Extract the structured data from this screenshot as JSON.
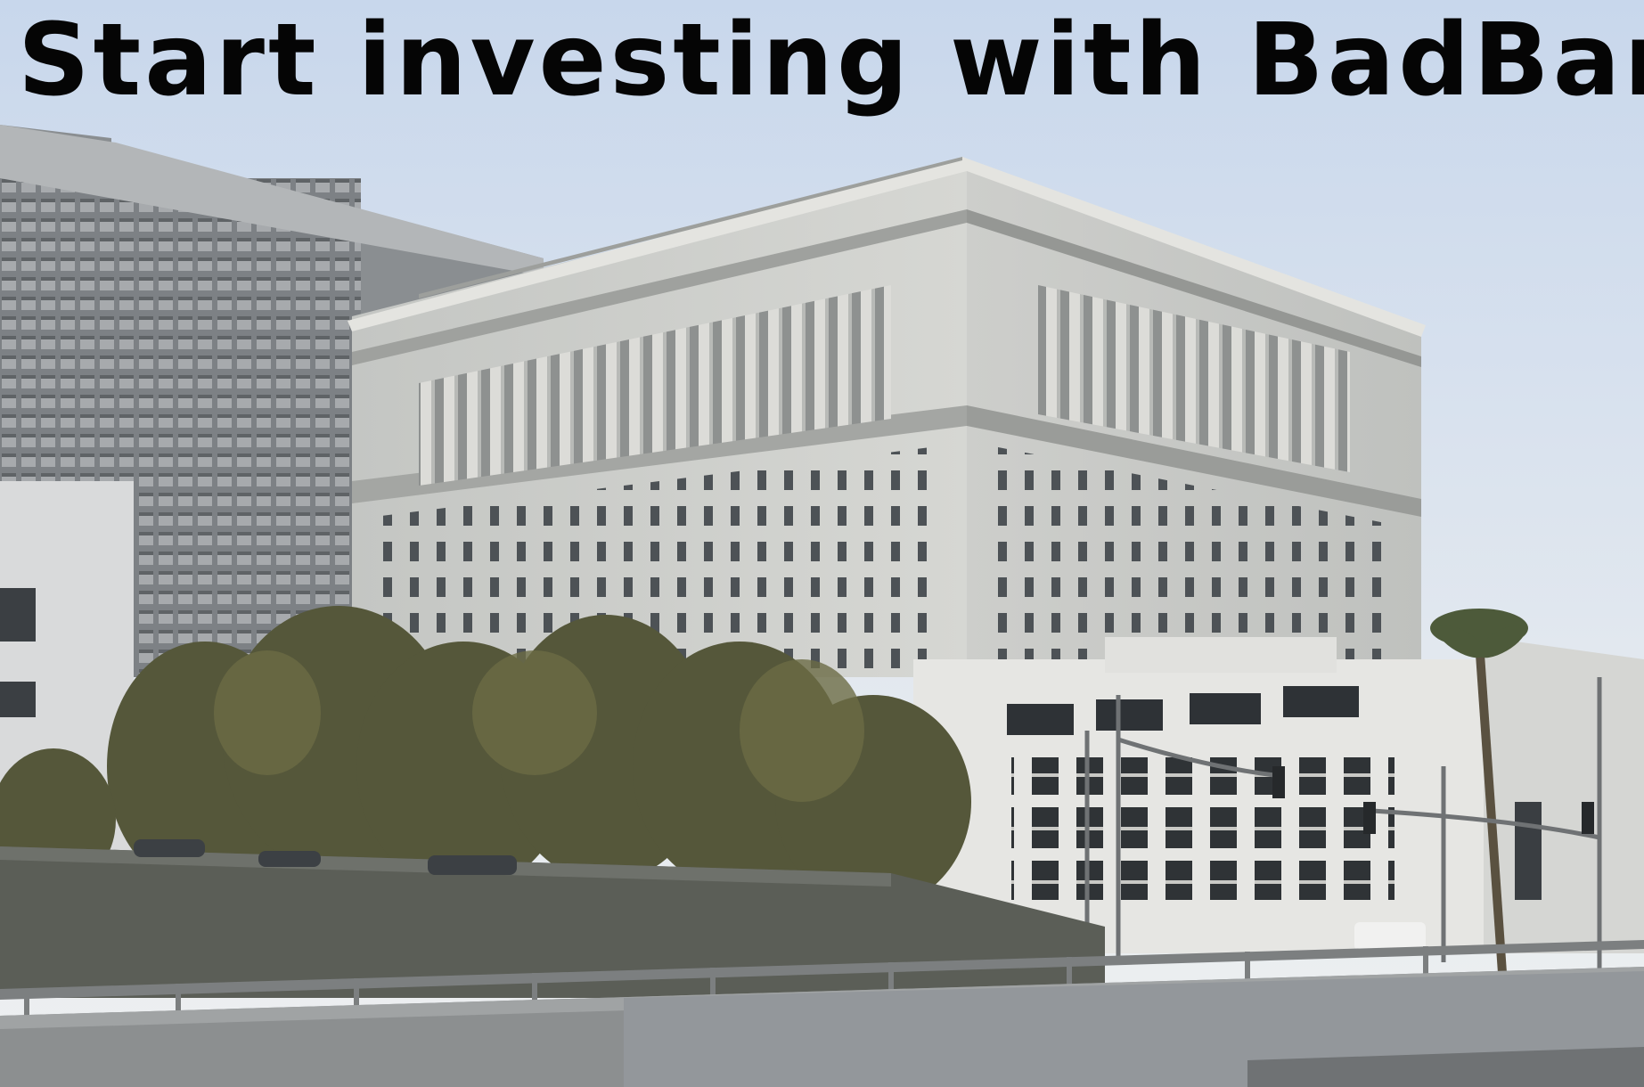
{
  "headline": {
    "text": "Start investing with BadBank"
  },
  "colors": {
    "headline_text": "#050505",
    "sky_top": "#c9d8ec",
    "sky_bottom": "#eef1f3",
    "stone": "#cfd0cc",
    "stone_shadow": "#a9aba8",
    "glass_tower": "#8c8f92",
    "trees": "#5a5a3a",
    "wall": "#5c5f58",
    "road": "#8a8d8e"
  }
}
